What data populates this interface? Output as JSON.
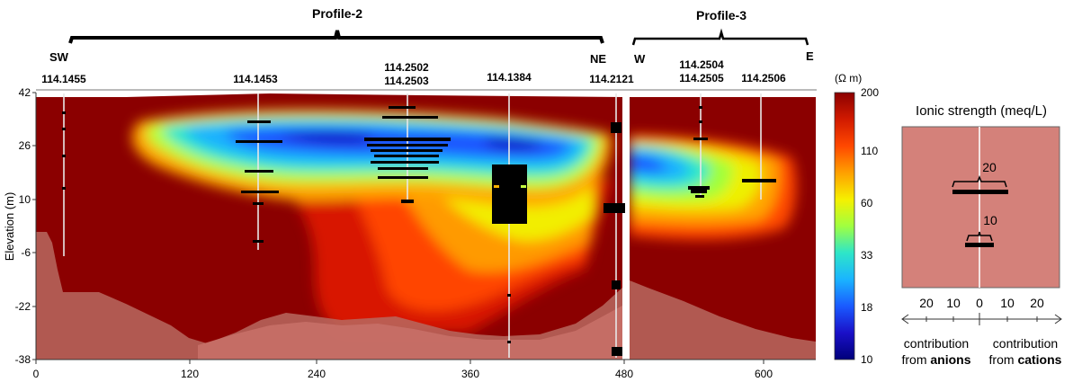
{
  "profiles": {
    "profile2": {
      "title": "Profile-2",
      "left_end": "SW",
      "right_end": "NE"
    },
    "profile3": {
      "title": "Profile-3",
      "left_end": "W",
      "right_end": "E"
    }
  },
  "wells": {
    "w1": "114.1455",
    "w2": "114.1453",
    "w3a": "114.2502",
    "w3b": "114.2503",
    "w4": "114.1384",
    "w5": "114.2121",
    "w6a": "114.2504",
    "w6b": "114.2505",
    "w7": "114.2506"
  },
  "y_axis": {
    "label": "Elevation (m)",
    "ticks": [
      "42",
      "26",
      "10",
      "-6",
      "-22",
      "-38"
    ]
  },
  "x_axis": {
    "ticks": [
      "0",
      "120",
      "240",
      "360",
      "480",
      "600"
    ]
  },
  "colorbar": {
    "unit": "(Ω m)",
    "ticks": [
      "200",
      "110",
      "60",
      "33",
      "18",
      "10"
    ],
    "colors": [
      "#8b0000",
      "#d11a00",
      "#ff4800",
      "#ffa000",
      "#f6f000",
      "#a0ff40",
      "#2ee6c8",
      "#1ab4ff",
      "#1a5aff",
      "#1a10c8",
      "#00007a"
    ]
  },
  "legend": {
    "title": "Ionic strength (meq/L)",
    "scale_20": "20",
    "scale_10": "10",
    "axis_ticks": [
      "20",
      "10",
      "0",
      "10",
      "20"
    ],
    "anions_prefix": "contribution",
    "anions_from": "from ",
    "anions_word": "anions",
    "cations_prefix": "contribution",
    "cations_from": "from ",
    "cations_word": "cations",
    "box_color": "#d4817a"
  }
}
